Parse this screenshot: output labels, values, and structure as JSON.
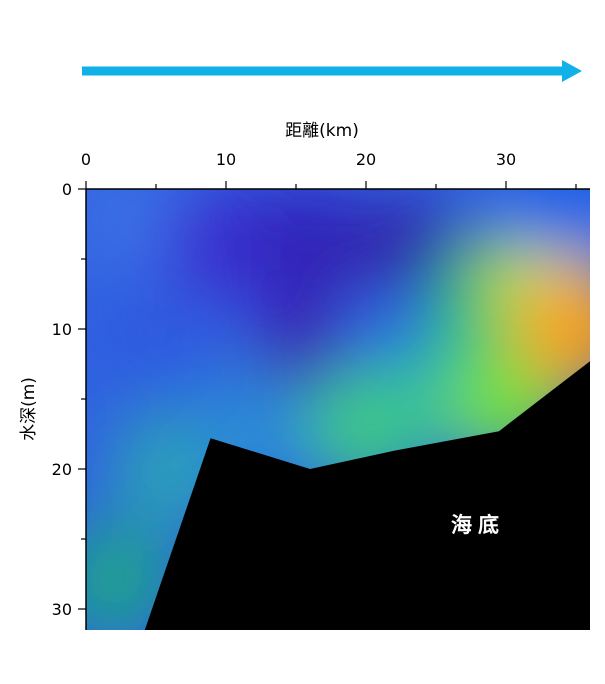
{
  "chart_data": {
    "type": "heatmap",
    "title": "",
    "xlabel": "距離(km)",
    "ylabel": "水深(m)",
    "x_axis_position": "top",
    "y_axis_inverted": true,
    "xlim": [
      0,
      36
    ],
    "ylim": [
      0,
      31.5
    ],
    "x_ticks": [
      0,
      10,
      20,
      30
    ],
    "y_ticks": [
      0,
      10,
      20,
      30
    ],
    "grid": false,
    "legend": "none",
    "direction_arrow_color": "#10b0e8",
    "seabed_color": "#000000",
    "seabed_label": "海底",
    "seabed_label_at": {
      "x": 28,
      "y": 24.5
    },
    "seabed_profile": [
      {
        "x": 4.2,
        "y": 31.5
      },
      {
        "x": 8.9,
        "y": 17.8
      },
      {
        "x": 16.0,
        "y": 20.0
      },
      {
        "x": 22.0,
        "y": 18.7
      },
      {
        "x": 29.5,
        "y": 17.3
      },
      {
        "x": 36.0,
        "y": 12.3
      },
      {
        "x": 36.0,
        "y": 31.5
      }
    ],
    "field_colors": [
      {
        "x": 3,
        "y": 2,
        "color": "#3a6ee6"
      },
      {
        "x": 5,
        "y": 10,
        "color": "#2f5cdf"
      },
      {
        "x": 10,
        "y": 4,
        "color": "#3b2fd0"
      },
      {
        "x": 16,
        "y": 4,
        "color": "#3322b8"
      },
      {
        "x": 16,
        "y": 12,
        "color": "#3b1fb0"
      },
      {
        "x": 23,
        "y": 5,
        "color": "#3324a8"
      },
      {
        "x": 22,
        "y": 11,
        "color": "#2f66e0"
      },
      {
        "x": 25,
        "y": 15,
        "color": "#1fb2b0"
      },
      {
        "x": 29,
        "y": 8,
        "color": "#26c070"
      },
      {
        "x": 30,
        "y": 15,
        "color": "#70e040"
      },
      {
        "x": 33,
        "y": 6,
        "color": "#c8e838"
      },
      {
        "x": 35,
        "y": 10,
        "color": "#f8a020"
      },
      {
        "x": 34,
        "y": 0.8,
        "color": "#1e62e8"
      },
      {
        "x": 2,
        "y": 28,
        "color": "#1fa090"
      },
      {
        "x": 6,
        "y": 20,
        "color": "#2aa0b8"
      },
      {
        "x": 12,
        "y": 17,
        "color": "#2a88d8"
      },
      {
        "x": 20,
        "y": 17,
        "color": "#3cc888"
      }
    ]
  }
}
